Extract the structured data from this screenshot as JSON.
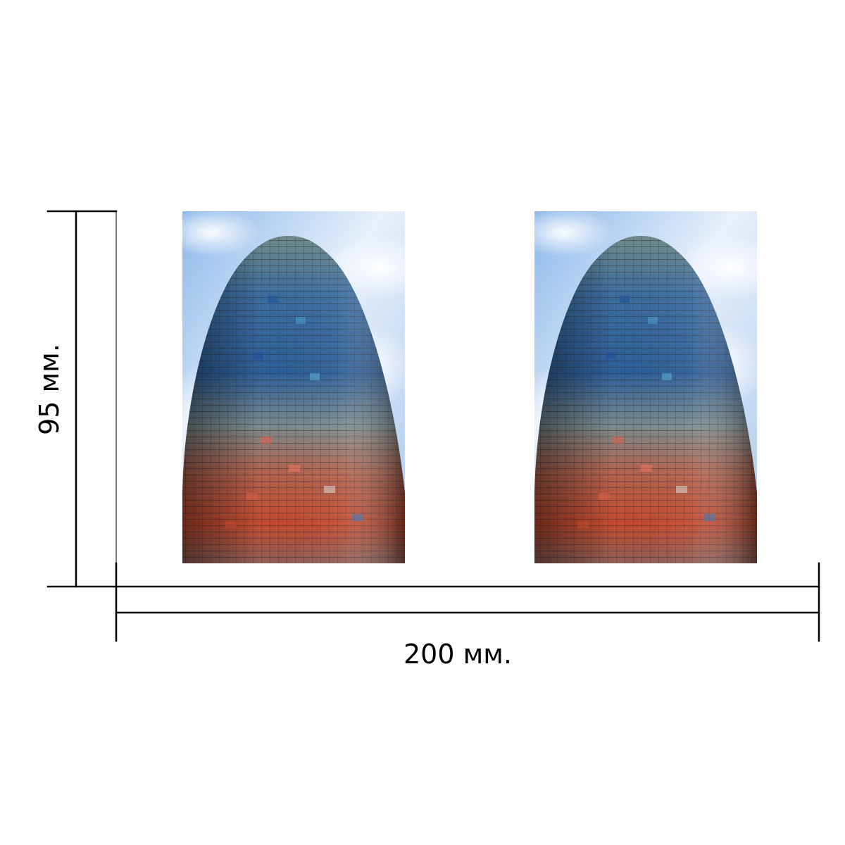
{
  "dimensions": {
    "width_label": "200 мм.",
    "height_label": "95 мм."
  },
  "photos": [
    {
      "subject": "tower-photo-left"
    },
    {
      "subject": "tower-photo-right"
    }
  ],
  "colors": {
    "line": "#000000",
    "sky_light": "#e6effa",
    "sky_blue": "#7fb0e6",
    "facade_blue": "#2a5f9a",
    "facade_teal": "#5aa0b8",
    "facade_red": "#c84a32",
    "facade_grey": "#8a9490"
  }
}
